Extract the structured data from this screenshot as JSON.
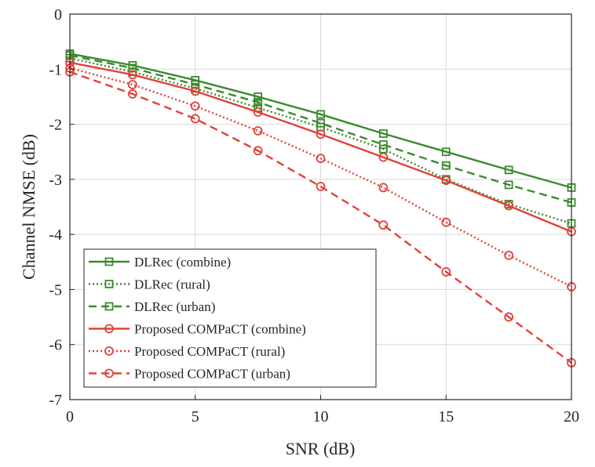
{
  "chart_data": {
    "type": "line",
    "title": "",
    "xlabel": "SNR (dB)",
    "ylabel": "Channel NMSE (dB)",
    "xlim": [
      0,
      20
    ],
    "ylim": [
      -7,
      0
    ],
    "xticks": [
      "0",
      "5",
      "10",
      "15",
      "20"
    ],
    "yticks": [
      "0",
      "-1",
      "-2",
      "-3",
      "-4",
      "-5",
      "-6",
      "-7"
    ],
    "grid": true,
    "legend_position": "bottom-left",
    "x": [
      0,
      2.5,
      5,
      7.5,
      10,
      12.5,
      15,
      17.5,
      20
    ],
    "series": [
      {
        "name": "DLRec (combine)",
        "color": "#3a8a2e",
        "dash": "solid",
        "marker": "square",
        "values": [
          -0.72,
          -0.93,
          -1.2,
          -1.5,
          -1.82,
          -2.17,
          -2.5,
          -2.83,
          -3.15
        ]
      },
      {
        "name": "DLRec (rural)",
        "color": "#3a8a2e",
        "dash": "dotted",
        "marker": "square",
        "values": [
          -0.8,
          -1.05,
          -1.35,
          -1.7,
          -2.05,
          -2.45,
          -3.0,
          -3.45,
          -3.8
        ]
      },
      {
        "name": "DLRec (urban)",
        "color": "#3a8a2e",
        "dash": "dashed",
        "marker": "square",
        "values": [
          -0.75,
          -0.98,
          -1.28,
          -1.6,
          -1.98,
          -2.37,
          -2.75,
          -3.1,
          -3.42
        ]
      },
      {
        "name": "Proposed COMPaCT (combine)",
        "color": "#e0423a",
        "dash": "solid",
        "marker": "circle",
        "values": [
          -0.88,
          -1.1,
          -1.4,
          -1.78,
          -2.18,
          -2.6,
          -3.02,
          -3.48,
          -3.95
        ]
      },
      {
        "name": "Proposed COMPaCT (rural)",
        "color": "#e0423a",
        "dash": "dotted",
        "marker": "circle",
        "values": [
          -0.98,
          -1.28,
          -1.67,
          -2.12,
          -2.62,
          -3.15,
          -3.78,
          -4.38,
          -4.95
        ]
      },
      {
        "name": "Proposed COMPaCT (urban)",
        "color": "#e0423a",
        "dash": "dashed",
        "marker": "circle",
        "values": [
          -1.05,
          -1.45,
          -1.9,
          -2.48,
          -3.13,
          -3.83,
          -4.68,
          -5.5,
          -6.33
        ]
      }
    ]
  }
}
